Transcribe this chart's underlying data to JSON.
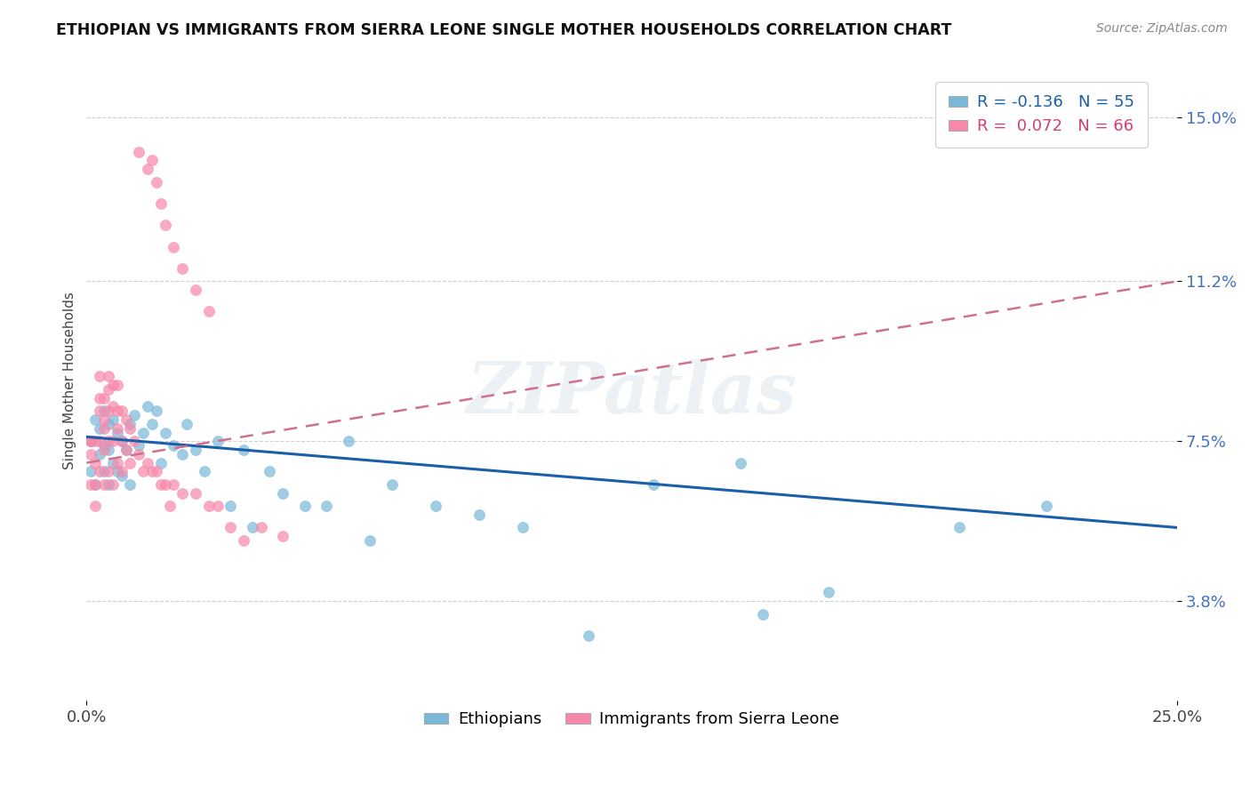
{
  "title": "ETHIOPIAN VS IMMIGRANTS FROM SIERRA LEONE SINGLE MOTHER HOUSEHOLDS CORRELATION CHART",
  "source": "Source: ZipAtlas.com",
  "ylabel": "Single Mother Households",
  "xmin": 0.0,
  "xmax": 0.25,
  "ymin": 0.015,
  "ymax": 0.163,
  "yticks": [
    0.038,
    0.075,
    0.112,
    0.15
  ],
  "ytick_labels": [
    "3.8%",
    "7.5%",
    "11.2%",
    "15.0%"
  ],
  "legend_ethiopians_r": "R = -0.136",
  "legend_ethiopians_n": "N = 55",
  "legend_sierra_leone_r": "R =  0.072",
  "legend_sierra_leone_n": "N = 66",
  "color_ethiopians": "#7ab8d9",
  "color_sierra_leone": "#f888aa",
  "color_trendline_ethiopians": "#1a5fa8",
  "color_trendline_sierra_leone": "#d07090",
  "watermark": "ZIPatlas",
  "ethiopians_x": [
    0.001,
    0.001,
    0.002,
    0.002,
    0.003,
    0.003,
    0.004,
    0.004,
    0.004,
    0.005,
    0.005,
    0.005,
    0.006,
    0.006,
    0.007,
    0.007,
    0.008,
    0.008,
    0.009,
    0.01,
    0.01,
    0.011,
    0.012,
    0.013,
    0.014,
    0.015,
    0.016,
    0.017,
    0.018,
    0.02,
    0.022,
    0.023,
    0.025,
    0.027,
    0.03,
    0.033,
    0.036,
    0.038,
    0.042,
    0.045,
    0.05,
    0.055,
    0.06,
    0.065,
    0.07,
    0.08,
    0.09,
    0.1,
    0.115,
    0.13,
    0.15,
    0.17,
    0.2,
    0.22,
    0.155
  ],
  "ethiopians_y": [
    0.075,
    0.068,
    0.08,
    0.065,
    0.078,
    0.072,
    0.082,
    0.074,
    0.068,
    0.079,
    0.073,
    0.065,
    0.08,
    0.07,
    0.077,
    0.068,
    0.075,
    0.067,
    0.073,
    0.079,
    0.065,
    0.081,
    0.074,
    0.077,
    0.083,
    0.079,
    0.082,
    0.07,
    0.077,
    0.074,
    0.072,
    0.079,
    0.073,
    0.068,
    0.075,
    0.06,
    0.073,
    0.055,
    0.068,
    0.063,
    0.06,
    0.06,
    0.075,
    0.052,
    0.065,
    0.06,
    0.058,
    0.055,
    0.03,
    0.065,
    0.07,
    0.04,
    0.055,
    0.06,
    0.035
  ],
  "sierra_leone_x": [
    0.001,
    0.001,
    0.001,
    0.001,
    0.002,
    0.002,
    0.002,
    0.002,
    0.003,
    0.003,
    0.003,
    0.003,
    0.003,
    0.004,
    0.004,
    0.004,
    0.004,
    0.004,
    0.005,
    0.005,
    0.005,
    0.005,
    0.005,
    0.006,
    0.006,
    0.006,
    0.006,
    0.007,
    0.007,
    0.007,
    0.007,
    0.008,
    0.008,
    0.008,
    0.009,
    0.009,
    0.01,
    0.01,
    0.011,
    0.012,
    0.013,
    0.014,
    0.015,
    0.016,
    0.017,
    0.018,
    0.019,
    0.02,
    0.022,
    0.025,
    0.028,
    0.03,
    0.033,
    0.036,
    0.04,
    0.045,
    0.015,
    0.018,
    0.02,
    0.022,
    0.025,
    0.028,
    0.016,
    0.017,
    0.014,
    0.012
  ],
  "sierra_leone_y": [
    0.075,
    0.075,
    0.072,
    0.065,
    0.075,
    0.07,
    0.065,
    0.06,
    0.09,
    0.085,
    0.082,
    0.075,
    0.068,
    0.085,
    0.08,
    0.078,
    0.073,
    0.065,
    0.09,
    0.087,
    0.082,
    0.075,
    0.068,
    0.088,
    0.083,
    0.075,
    0.065,
    0.088,
    0.082,
    0.078,
    0.07,
    0.082,
    0.075,
    0.068,
    0.08,
    0.073,
    0.078,
    0.07,
    0.075,
    0.072,
    0.068,
    0.07,
    0.068,
    0.068,
    0.065,
    0.065,
    0.06,
    0.065,
    0.063,
    0.063,
    0.06,
    0.06,
    0.055,
    0.052,
    0.055,
    0.053,
    0.14,
    0.125,
    0.12,
    0.115,
    0.11,
    0.105,
    0.135,
    0.13,
    0.138,
    0.142
  ]
}
